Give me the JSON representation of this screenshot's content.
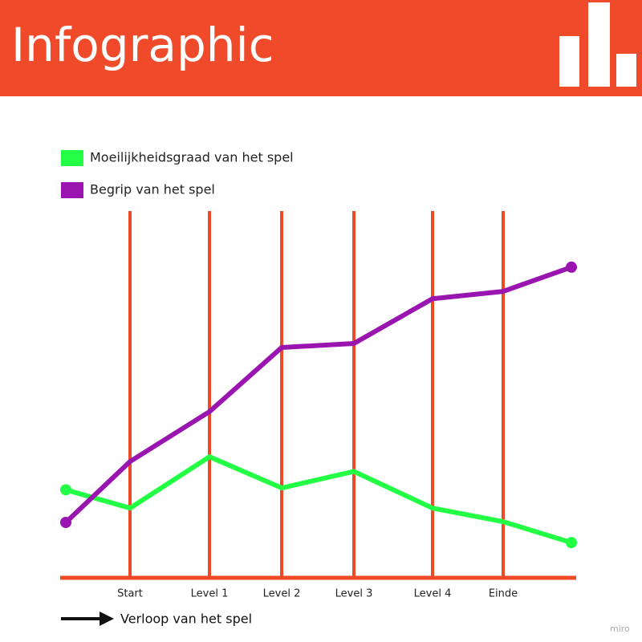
{
  "header": {
    "title": "Infographic"
  },
  "chart_data": {
    "type": "line",
    "categories": [
      null,
      "Start",
      "Level 1",
      "Level 2",
      "Level 3",
      "Level 4",
      "Einde",
      null
    ],
    "series": [
      {
        "name": "Moeilijkheidsgraad van het spel",
        "color": "#22ff44",
        "values": [
          24,
          19,
          33,
          24.5,
          29,
          19,
          15.3,
          9.6
        ]
      },
      {
        "name": "Begrip van het spel",
        "color": "#9a14b0",
        "values": [
          15.1,
          31.7,
          45.3,
          62.8,
          63.9,
          76.1,
          78.1,
          84.7
        ]
      }
    ],
    "ylim": [
      0,
      100
    ],
    "x_label": "Verloop van het spel",
    "guide_color": "#ee4a26"
  },
  "watermark": "miro"
}
